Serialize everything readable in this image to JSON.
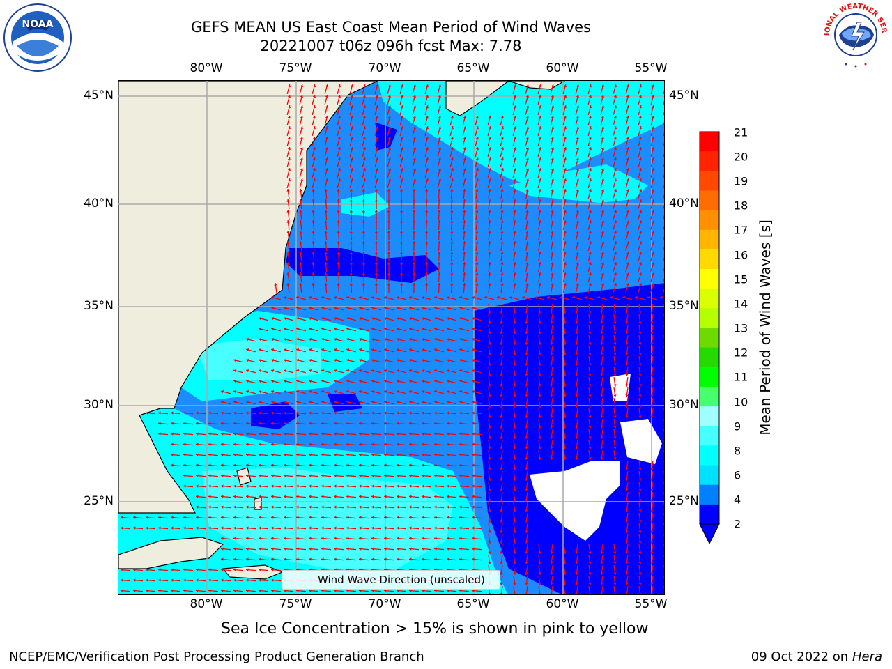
{
  "title": {
    "line1": "GEFS MEAN US East Coast Mean Period of Wind Waves",
    "line2": "20221007 t06z 096h fcst   Max: 7.78"
  },
  "axes": {
    "lon_labels": [
      "80°W",
      "75°W",
      "70°W",
      "65°W",
      "60°W",
      "55°W"
    ],
    "lat_labels": [
      "45°N",
      "40°N",
      "35°N",
      "30°N",
      "25°N"
    ]
  },
  "colorbar": {
    "title": "Mean Period of Wind Waves [s]",
    "ticks": [
      "21",
      "20",
      "19",
      "18",
      "17",
      "16",
      "15",
      "14",
      "13",
      "12",
      "11",
      "10",
      "9",
      "8",
      "6",
      "4",
      "2"
    ],
    "colors": [
      "#ff0000",
      "#ff2400",
      "#ff4800",
      "#ff6d00",
      "#ff9100",
      "#ffb600",
      "#ffda00",
      "#ffff00",
      "#daff00",
      "#b6ff00",
      "#6dda00",
      "#24da00",
      "#00ff00",
      "#48ff6d",
      "#a0ffff",
      "#48ffff",
      "#00ffff",
      "#00e1ff",
      "#0080ff",
      "#0000ff"
    ]
  },
  "legend": {
    "label": "Wind Wave Direction (unscaled)"
  },
  "subtitle": "Sea Ice Concentration > 15% is shown in pink to yellow",
  "footer": {
    "left": "NCEP/EMC/Verification Post Processing Product Generation Branch",
    "right_date": "09 Oct 2022 on ",
    "right_host": "Hera"
  },
  "logos": {
    "noaa_text": "NOAA",
    "nws_text": "NATIONAL WEATHER SERVICE"
  },
  "palette": {
    "land": "#efedde",
    "dark_blue": "#0000ff",
    "mid_blue": "#1c8cff",
    "cyan": "#00ffff",
    "light_cyan": "#48ffff",
    "arrow": "#ff0000",
    "grid": "#aaaaaa"
  }
}
